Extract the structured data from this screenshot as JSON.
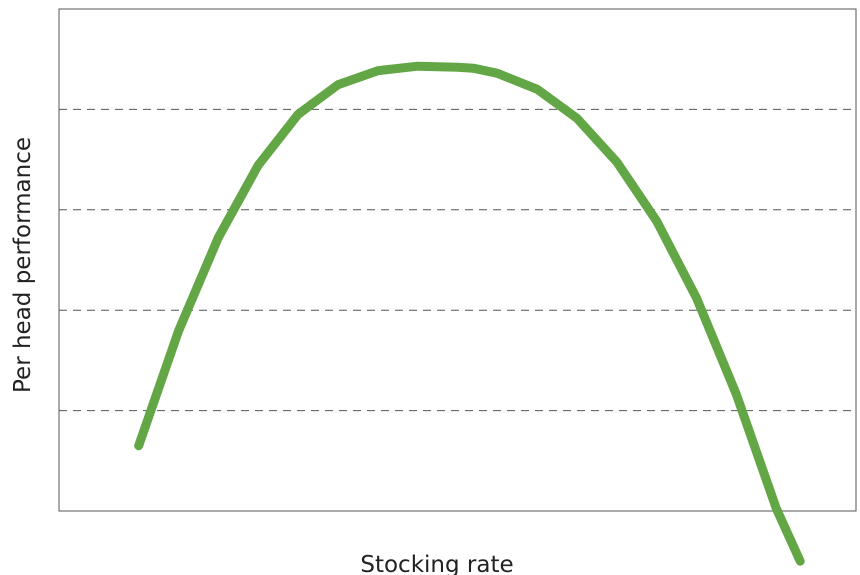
{
  "chart_data": {
    "type": "line",
    "title": "",
    "xlabel": "Stocking rate",
    "ylabel": "Per head performance",
    "xlim": [
      0,
      1
    ],
    "ylim": [
      0,
      1
    ],
    "grid": {
      "x": false,
      "y": true,
      "style": "dashed"
    },
    "gridlines_y": [
      0.2,
      0.4,
      0.6,
      0.8
    ],
    "series": [
      {
        "color": "#62a645",
        "x": [
          0.1,
          0.15,
          0.2,
          0.25,
          0.3,
          0.35,
          0.4,
          0.45,
          0.5,
          0.52,
          0.55,
          0.6,
          0.65,
          0.7,
          0.75,
          0.8,
          0.85,
          0.9,
          0.93
        ],
        "y": [
          0.13,
          0.359,
          0.545,
          0.689,
          0.79,
          0.849,
          0.877,
          0.886,
          0.884,
          0.882,
          0.872,
          0.84,
          0.782,
          0.695,
          0.577,
          0.424,
          0.232,
          0.005,
          -0.1
        ]
      }
    ]
  }
}
